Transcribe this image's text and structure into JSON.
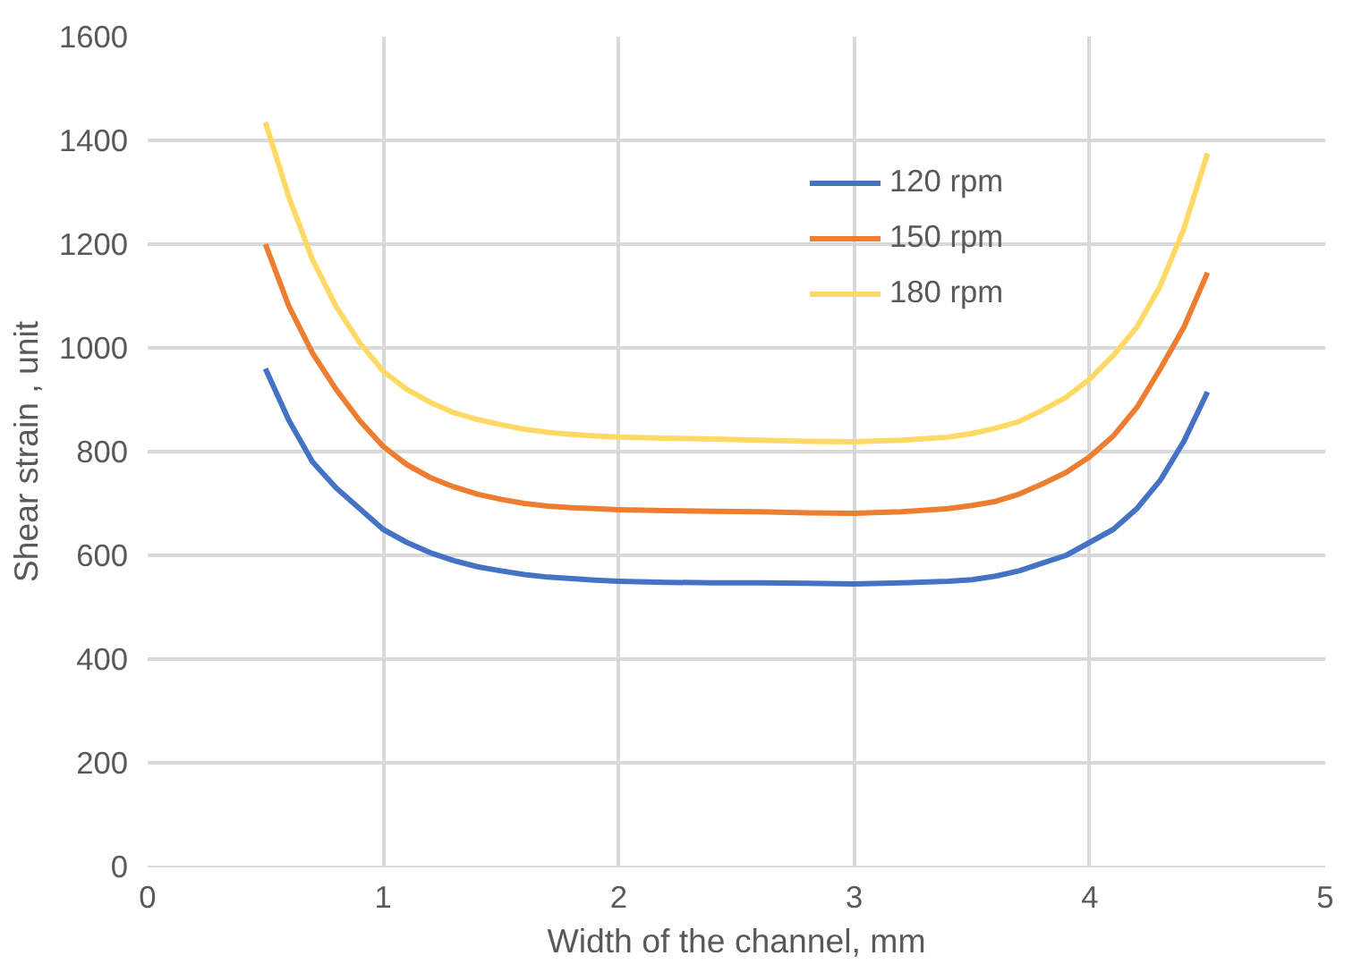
{
  "chart_data": {
    "type": "line",
    "xlabel": "Width of the channel, mm",
    "ylabel": "Shear strain , unit",
    "x": [
      0.5,
      0.6,
      0.7,
      0.8,
      0.9,
      1.0,
      1.1,
      1.2,
      1.3,
      1.4,
      1.5,
      1.6,
      1.7,
      1.8,
      1.9,
      2.0,
      2.2,
      2.4,
      2.6,
      2.8,
      3.0,
      3.2,
      3.4,
      3.5,
      3.6,
      3.7,
      3.8,
      3.9,
      4.0,
      4.1,
      4.2,
      4.3,
      4.4,
      4.5
    ],
    "series": [
      {
        "name": "120 rpm",
        "color": "#4472c4",
        "values": [
          960,
          860,
          780,
          730,
          690,
          650,
          625,
          605,
          590,
          578,
          570,
          563,
          558,
          555,
          552,
          550,
          548,
          547,
          547,
          546,
          545,
          547,
          550,
          553,
          560,
          570,
          585,
          600,
          625,
          650,
          690,
          745,
          820,
          915
        ]
      },
      {
        "name": "150 rpm",
        "color": "#ed7d31",
        "values": [
          1200,
          1080,
          990,
          920,
          860,
          810,
          775,
          750,
          732,
          718,
          708,
          700,
          695,
          692,
          690,
          688,
          686,
          685,
          684,
          682,
          681,
          684,
          690,
          696,
          704,
          718,
          738,
          760,
          790,
          830,
          885,
          960,
          1040,
          1145
        ]
      },
      {
        "name": "180 rpm",
        "color": "#ffd966",
        "values": [
          1435,
          1290,
          1170,
          1080,
          1010,
          955,
          920,
          895,
          875,
          862,
          852,
          843,
          837,
          833,
          830,
          828,
          826,
          824,
          822,
          820,
          819,
          822,
          828,
          835,
          845,
          858,
          880,
          905,
          940,
          985,
          1040,
          1120,
          1230,
          1375
        ]
      }
    ],
    "xlim": [
      0,
      5
    ],
    "xticks": [
      0,
      1,
      2,
      3,
      4,
      5
    ],
    "ylim": [
      0,
      1600
    ],
    "yticks": [
      0,
      200,
      400,
      600,
      800,
      1000,
      1200,
      1400,
      1600
    ],
    "grid": true,
    "legend": "top right",
    "marker": "none",
    "line_style": "solid"
  }
}
